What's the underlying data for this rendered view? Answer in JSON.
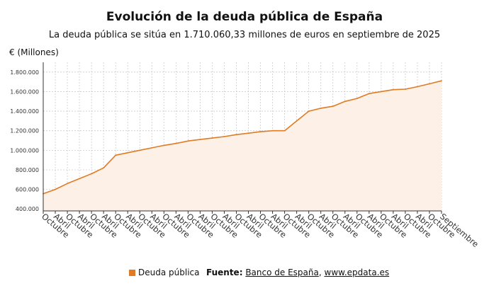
{
  "chart_data": {
    "type": "area",
    "title": "Evolución de la deuda pública de España",
    "subtitle": "La deuda pública se sitúa en 1.710.060,33 millones de euros en septiembre de 2025",
    "ylabel": "€ (Millones)",
    "ylim": [
      380000,
      1900000
    ],
    "yticks": [
      {
        "value": 400000,
        "label": "400.000"
      },
      {
        "value": 600000,
        "label": "600.000"
      },
      {
        "value": 800000,
        "label": "800.000"
      },
      {
        "value": 1000000,
        "label": "1.000.000"
      },
      {
        "value": 1200000,
        "label": "1.200.000"
      },
      {
        "value": 1400000,
        "label": "1.400.000"
      },
      {
        "value": 1600000,
        "label": "1.600.000"
      },
      {
        "value": 1800000,
        "label": "1.800.000"
      }
    ],
    "xticks": [
      "Octubre",
      "Abril",
      "Octubre",
      "Abril",
      "Octubre",
      "Abril",
      "Octubre",
      "Abril",
      "Octubre",
      "Abril",
      "Octubre",
      "Abril",
      "Octubre",
      "Abril",
      "Octubre",
      "Abril",
      "Octubre",
      "Abril",
      "Octubre",
      "Abril",
      "Octubre",
      "Abril",
      "Octubre",
      "Abril",
      "Octubre",
      "Abril",
      "Octubre",
      "Abril",
      "Octubre",
      "Abril",
      "Octubre",
      "Abril",
      "Octubre",
      "Septiembre"
    ],
    "grid": true,
    "legend_position": "bottom",
    "colors": {
      "line": "#e07b24",
      "fill": "#fdf0e6",
      "grid": "#cccccc",
      "axis": "#333333"
    },
    "series": [
      {
        "name": "Deuda pública",
        "x": [
          0,
          1,
          2,
          3,
          4,
          5,
          6,
          7,
          8,
          9,
          10,
          11,
          12,
          13,
          14,
          15,
          16,
          17,
          18,
          19,
          20,
          21,
          22,
          23,
          24,
          25,
          26,
          27,
          28,
          29,
          30,
          31,
          32,
          33
        ],
        "values": [
          555000,
          600000,
          660000,
          710000,
          760000,
          820000,
          950000,
          975000,
          1000000,
          1025000,
          1050000,
          1070000,
          1095000,
          1110000,
          1125000,
          1140000,
          1160000,
          1175000,
          1190000,
          1200000,
          1200000,
          1300000,
          1400000,
          1430000,
          1450000,
          1500000,
          1530000,
          1580000,
          1600000,
          1620000,
          1625000,
          1650000,
          1680000,
          1710060
        ]
      }
    ]
  },
  "legend": {
    "label": "Deuda pública"
  },
  "source": {
    "prefix": "Fuente:",
    "name": "Banco de España",
    "separator": ",",
    "url": "www.epdata.es"
  }
}
